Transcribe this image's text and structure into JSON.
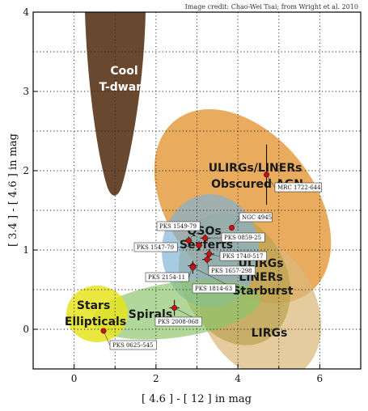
{
  "credit": "Image credit: Chao-Wei Tsai; from Wright et al. 2010",
  "chart_data": {
    "type": "scatter",
    "xlabel": "[ 4.6 ] - [ 12 ] in mag",
    "ylabel": "[ 3.4 ] - [ 4.6 ] in mag",
    "xlim": [
      -1,
      7
    ],
    "ylim": [
      -0.5,
      4
    ],
    "xticks": [
      0,
      2,
      4,
      6
    ],
    "yticks": [
      0,
      1,
      2,
      3,
      4
    ],
    "grid": true,
    "regions": [
      {
        "label": "Cool\nT-dwarfs",
        "color": "#5b3a1e",
        "text_color": "#ffffff"
      },
      {
        "label": "ULIRGs/LINERs\nObscured AGN",
        "color": "#e08a1e",
        "text_color": "#1a1a1a"
      },
      {
        "label": "QSOs\nSeyferts",
        "color": "#7fb3d5",
        "text_color": "#1a1a1a"
      },
      {
        "label": "LIRGs",
        "color": "#d9b87a",
        "text_color": "#1a1a1a"
      },
      {
        "label": "ULIRGs\nLINERs\nStarburst",
        "color": "#b8a04a",
        "text_color": "#1a1a1a"
      },
      {
        "label": "Spirals",
        "color": "#8cc56a",
        "text_color": "#1a1a1a"
      },
      {
        "label": "Stars\nEllipticals",
        "color": "#e6e41e",
        "text_color": "#1a1a1a"
      }
    ],
    "points": [
      {
        "name": "MRC 1722-644",
        "x": 4.7,
        "y": 1.95,
        "xerr": 0.0,
        "yerr": 0.38
      },
      {
        "name": "NGC 4945",
        "x": 3.85,
        "y": 1.28,
        "xerr": 0.0,
        "yerr": 0.0
      },
      {
        "name": "PKS 1549-79",
        "x": 2.8,
        "y": 1.12,
        "xerr": 0.08,
        "yerr": 0.05
      },
      {
        "name": "PKS 1547-79",
        "x": 3.05,
        "y": 1.06,
        "xerr": 0.08,
        "yerr": 0.05
      },
      {
        "name": "PKS 0859-25",
        "x": 3.2,
        "y": 1.15,
        "xerr": 0.12,
        "yerr": 0.05
      },
      {
        "name": "PKS 1740-517",
        "x": 3.3,
        "y": 0.95,
        "xerr": 0.12,
        "yerr": 0.06
      },
      {
        "name": "PKS 1657-298",
        "x": 3.25,
        "y": 0.88,
        "xerr": 0.12,
        "yerr": 0.05
      },
      {
        "name": "PKS 2154-11",
        "x": 2.9,
        "y": 0.8,
        "xerr": 0.12,
        "yerr": 0.06
      },
      {
        "name": "PKS 1814-63",
        "x": 2.9,
        "y": 0.78,
        "xerr": 0.08,
        "yerr": 0.08
      },
      {
        "name": "PKS 2008-068",
        "x": 2.45,
        "y": 0.27,
        "xerr": 0.12,
        "yerr": 0.1
      },
      {
        "name": "PKS 0625-545",
        "x": 0.72,
        "y": -0.02,
        "xerr": 0.0,
        "yerr": 0.0
      }
    ]
  },
  "colors": {
    "point": "#cc1111",
    "grid": "#222222"
  }
}
